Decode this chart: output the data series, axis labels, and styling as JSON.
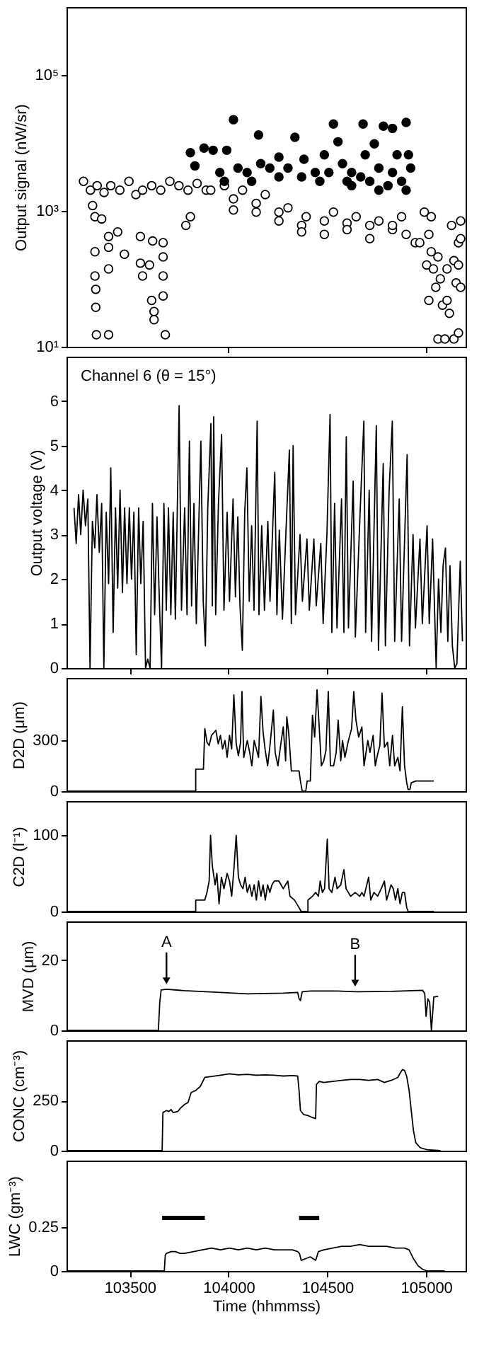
{
  "chart_data": [
    {
      "type": "scatter",
      "ylabel": "Output signal (nW/sr)",
      "log": true,
      "marker": "circle",
      "tick_labels": "y",
      "xlim": [
        103180,
        105200
      ],
      "xticks": [
        {
          "value": 104000,
          "label": null
        },
        {
          "value": 105000,
          "label": null
        }
      ],
      "ylim": [
        10,
        1000000
      ],
      "yticks": [
        {
          "value": 10,
          "label": "10¹"
        },
        {
          "value": 1000,
          "label": "10³"
        },
        {
          "value": 100000,
          "label": "10⁵"
        }
      ],
      "series": [
        {
          "color": "#ffffff",
          "x": [
            103266,
            103301,
            103335,
            103370,
            103404,
            103450,
            103496,
            103531,
            103565,
            103611,
            103657,
            103703,
            103749,
            103795,
            103841,
            103887,
            103324,
            103324,
            103324,
            103328,
            103328,
            103331,
            103393,
            103393,
            103393,
            103393,
            103439,
            103473,
            103554,
            103554,
            103565,
            103600,
            103611,
            103623,
            103623,
            103616,
            103669,
            103669,
            103669,
            103669,
            103680,
            103784,
            103807,
            103312,
            103358,
            103910,
            104025,
            104140,
            104255,
            104370,
            104485,
            104600,
            104715,
            104830,
            104899,
            104025,
            104140,
            104255,
            104370,
            104485,
            104600,
            104715,
            104830,
            104945,
            103979,
            104071,
            104186,
            104301,
            104393,
            104531,
            104646,
            104761,
            104876,
            104968,
            104991,
            105026,
            105014,
            105026,
            105003,
            105037,
            105060,
            105049,
            105072,
            105083,
            105106,
            105118,
            105141,
            105152,
            105164,
            105175,
            105175,
            105164,
            105175,
            105014,
            105060,
            105095,
            105141,
            105164,
            105129,
            105106
          ],
          "values": [
            2720,
            2020,
            2350,
            1870,
            2350,
            2020,
            2720,
            1740,
            2020,
            2350,
            2020,
            2720,
            2350,
            2020,
            2530,
            2020,
            820,
            250,
            110,
            70,
            38,
            15,
            15,
            420,
            290,
            140,
            490,
            230,
            420,
            170,
            110,
            160,
            48,
            33,
            25,
            360,
            340,
            210,
            110,
            56,
            15,
            610,
            820,
            1200,
            760,
            2020,
            1500,
            1290,
            960,
            610,
            710,
            660,
            610,
            530,
            450,
            1030,
            960,
            710,
            490,
            450,
            530,
            390,
            610,
            340,
            2350,
            2020,
            1740,
            1110,
            820,
            960,
            820,
            710,
            820,
            340,
            960,
            820,
            450,
            250,
            160,
            140,
            210,
            75,
            100,
            41,
            48,
            31,
            185,
            87,
            340,
            710,
            390,
            160,
            75,
            48,
            13,
            13,
            13,
            16,
            610,
            140
          ]
        },
        {
          "color": "#000000",
          "x": [
            103807,
            103876,
            103922,
            103991,
            104025,
            103830,
            103956,
            104048,
            104094,
            104152,
            104163,
            104209,
            104255,
            104301,
            104336,
            104382,
            104439,
            104485,
            104531,
            104554,
            104577,
            104623,
            104681,
            104692,
            104738,
            104784,
            104830,
            104853,
            104899,
            104911,
            104876,
            104761,
            104508,
            104600,
            104715,
            104807,
            104899,
            104462,
            104623,
            104761,
            104370,
            104255,
            104117,
            103979,
            104669,
            104830,
            104922
          ],
          "values": [
            7200,
            8400,
            7800,
            7800,
            22000,
            4600,
            3670,
            4260,
            3670,
            13100,
            4950,
            4260,
            6200,
            4260,
            12100,
            5750,
            3670,
            6700,
            19000,
            10400,
            4950,
            3670,
            19000,
            6700,
            9700,
            17700,
            16400,
            6700,
            20000,
            6700,
            2720,
            4260,
            3670,
            2720,
            2720,
            2350,
            2020,
            2720,
            2350,
            2020,
            3160,
            3160,
            2720,
            2720,
            3160,
            3670,
            4260
          ]
        }
      ]
    },
    {
      "type": "line",
      "ylabel": "Output voltage (V)",
      "tick_labels": "y",
      "annotations": [
        "Channel 6 (θ = 15°)"
      ],
      "xlim": [
        103180,
        105200
      ],
      "xticks": [
        {
          "value": 103500,
          "label": null
        },
        {
          "value": 104000,
          "label": null
        },
        {
          "value": 104500,
          "label": null
        },
        {
          "value": 105000,
          "label": null
        }
      ],
      "ylim": [
        0,
        7
      ],
      "yticks": [
        0,
        1,
        2,
        3,
        4,
        5,
        6
      ],
      "series": [
        {
          "color": "#000000",
          "x": [
            103218,
            103229,
            103241,
            103252,
            103264,
            103276,
            103288,
            103299,
            103311,
            103323,
            103334,
            103346,
            103358,
            103369,
            103381,
            103393,
            103404,
            103416,
            103428,
            103439,
            103451,
            103463,
            103474,
            103486,
            103498,
            103509,
            103521,
            103533,
            103545,
            103556,
            103568,
            103580,
            103591,
            103603,
            103615,
            103626,
            103638,
            103650,
            103661,
            103673,
            103685,
            103696,
            103708,
            103720,
            103731,
            103750,
            103762,
            103778,
            103790,
            103802,
            103813,
            103825,
            103837,
            103860,
            103872,
            103883,
            103895,
            103911,
            103918,
            103925,
            103935,
            103949,
            103965,
            103977,
            103993,
            104005,
            104023,
            104035,
            104047,
            104058,
            104070,
            104082,
            104093,
            104105,
            104117,
            104129,
            104145,
            104154,
            104168,
            104182,
            104199,
            104210,
            104234,
            104245,
            104257,
            104273,
            104292,
            104308,
            104318,
            104327,
            104339,
            104362,
            104374,
            104397,
            104409,
            104432,
            104444,
            104467,
            104479,
            104498,
            104514,
            104523,
            104537,
            104549,
            104572,
            104584,
            104596,
            104607,
            104631,
            104642,
            104666,
            104685,
            104694,
            104712,
            104724,
            104748,
            104759,
            104783,
            104794,
            104813,
            104829,
            104841,
            104864,
            104876,
            104904,
            104916,
            104934,
            104946,
            104969,
            104981,
            105005,
            105016,
            105033,
            105051,
            105063,
            105075,
            105086,
            105098,
            105110,
            105121,
            105133,
            105145,
            105156,
            105173,
            105184
          ],
          "values": [
            3.6,
            2.8,
            3.9,
            3.0,
            4.0,
            3.2,
            3.8,
            0,
            3.3,
            2.7,
            3.9,
            2.6,
            3.7,
            0,
            3.5,
            1.9,
            4.5,
            0.8,
            3.6,
            1.8,
            4.0,
            1.7,
            3.6,
            1.9,
            3.6,
            2.0,
            3.5,
            0.3,
            3.6,
            1.9,
            3.3,
            0,
            0.2,
            0,
            3.7,
            1.2,
            3.4,
            1.5,
            0,
            3.7,
            1.3,
            3.6,
            1.2,
            3.5,
            1.1,
            5.9,
            1.3,
            3.6,
            1.2,
            5.1,
            1.4,
            3.7,
            1.0,
            5.1,
            1.5,
            0.5,
            3.6,
            5.5,
            1.4,
            5.65,
            1.2,
            3.7,
            5.25,
            1.3,
            3.5,
            1.5,
            3.8,
            1.6,
            3.4,
            1.4,
            0.4,
            3.5,
            4.5,
            1.5,
            3.2,
            1.3,
            5.55,
            1.2,
            3.2,
            1.3,
            3.3,
            1.5,
            4.4,
            1.2,
            3.1,
            1.1,
            3.2,
            4.9,
            1.0,
            5.0,
            1.2,
            3.0,
            1.5,
            2.9,
            1.3,
            2.9,
            1.4,
            2.8,
            1.0,
            3.0,
            5.7,
            0.8,
            3.7,
            0.9,
            3.8,
            0.8,
            5.2,
            0.9,
            4.2,
            0.7,
            3.5,
            5.55,
            0.8,
            4.0,
            0.6,
            5.45,
            0.4,
            4.6,
            0.5,
            4.0,
            5.55,
            0.6,
            3.8,
            0.6,
            4.8,
            0.5,
            3.0,
            0.9,
            2.9,
            1.0,
            3.2,
            1.0,
            2.9,
            0,
            2.0,
            0.8,
            2.3,
            2.7,
            0.6,
            2.3,
            0.5,
            0,
            0.1,
            2.4,
            0.6
          ]
        }
      ]
    },
    {
      "type": "line",
      "ylabel": "D2D (μm)",
      "tick_labels": "y",
      "xlim": [
        103180,
        105200
      ],
      "ylim": [
        0,
        670
      ],
      "yticks": [
        0,
        300
      ],
      "series": [
        {
          "color": "#000000",
          "x": [
            103186,
            103834,
            103834,
            103873,
            103880,
            103891,
            103902,
            103914,
            103936,
            103948,
            103959,
            103970,
            103982,
            103993,
            104005,
            104016,
            104027,
            104039,
            104050,
            104061,
            104068,
            104077,
            104095,
            104107,
            104118,
            104130,
            104152,
            104164,
            104175,
            104186,
            104198,
            104209,
            104227,
            104236,
            104250,
            104266,
            104277,
            104289,
            104295,
            104305,
            104318,
            104357,
            104364,
            104373,
            104391,
            104398,
            104414,
            104425,
            104436,
            104448,
            104459,
            104470,
            104482,
            104493,
            104505,
            104516,
            104532,
            104545,
            104555,
            104568,
            104577,
            104589,
            104607,
            104623,
            104634,
            104645,
            104659,
            104675,
            104686,
            104705,
            104716,
            104732,
            104743,
            104755,
            104766,
            104777,
            104789,
            104805,
            104816,
            104830,
            104841,
            104857,
            104868,
            104880,
            104891,
            104902,
            104909,
            104918,
            104925,
            104948,
            105039
          ],
          "values": [
            0,
            0,
            130,
            130,
            370,
            290,
            270,
            330,
            360,
            280,
            330,
            250,
            300,
            200,
            330,
            250,
            570,
            280,
            210,
            290,
            590,
            200,
            300,
            230,
            150,
            300,
            200,
            560,
            350,
            240,
            150,
            260,
            480,
            230,
            150,
            290,
            380,
            180,
            440,
            340,
            120,
            120,
            60,
            0,
            0,
            60,
            60,
            450,
            320,
            600,
            380,
            150,
            180,
            240,
            590,
            150,
            150,
            230,
            420,
            180,
            300,
            200,
            300,
            370,
            590,
            420,
            320,
            380,
            150,
            300,
            230,
            330,
            150,
            220,
            270,
            580,
            260,
            290,
            150,
            330,
            150,
            200,
            120,
            500,
            150,
            50,
            10,
            10,
            50,
            60,
            60
          ]
        }
      ]
    },
    {
      "type": "line",
      "ylabel": "C2D (l⁻¹)",
      "tick_labels": "y",
      "xlim": [
        103180,
        105200
      ],
      "ylim": [
        0,
        145
      ],
      "yticks": [
        0,
        100
      ],
      "series": [
        {
          "color": "#000000",
          "x": [
            103186,
            103834,
            103834,
            103880,
            103891,
            103902,
            103909,
            103918,
            103932,
            103941,
            103952,
            103964,
            103977,
            103993,
            104005,
            104016,
            104027,
            104039,
            104050,
            104061,
            104073,
            104084,
            104095,
            104107,
            104118,
            104130,
            104141,
            104152,
            104164,
            104175,
            104186,
            104198,
            104209,
            104220,
            104232,
            104255,
            104277,
            104300,
            104311,
            104334,
            104357,
            104368,
            104402,
            104402,
            104425,
            104441,
            104455,
            104464,
            104475,
            104486,
            104500,
            104509,
            104523,
            104539,
            104550,
            104568,
            104584,
            104595,
            104618,
            104641,
            104664,
            104675,
            104686,
            104709,
            104720,
            104736,
            104755,
            104773,
            104789,
            104800,
            104823,
            104834,
            104845,
            104857,
            104868,
            104880,
            104891,
            104902,
            104909,
            105039
          ],
          "values": [
            0,
            0,
            15,
            15,
            25,
            40,
            100,
            60,
            35,
            50,
            10,
            45,
            30,
            50,
            40,
            20,
            55,
            100,
            45,
            35,
            30,
            45,
            25,
            35,
            20,
            35,
            15,
            40,
            20,
            35,
            15,
            35,
            25,
            35,
            40,
            40,
            30,
            40,
            20,
            15,
            5,
            0,
            0,
            15,
            20,
            25,
            20,
            40,
            25,
            30,
            95,
            30,
            25,
            45,
            30,
            35,
            55,
            30,
            20,
            25,
            20,
            25,
            20,
            45,
            15,
            25,
            20,
            30,
            40,
            15,
            35,
            30,
            15,
            30,
            10,
            25,
            25,
            5,
            0,
            0
          ]
        }
      ]
    },
    {
      "type": "line",
      "ylabel": "MVD (μm)",
      "tick_labels": "y",
      "xlim": [
        103180,
        105200
      ],
      "ylim": [
        0,
        31
      ],
      "yticks": [
        0,
        20
      ],
      "annotations": [
        {
          "text": "A",
          "x": 103686,
          "y": 11.7
        },
        {
          "text": "B",
          "x": 104641,
          "y": 11.0
        }
      ],
      "series": [
        {
          "color": "#000000",
          "x": [
            103186,
            103645,
            103652,
            103659,
            103686,
            103777,
            103959,
            104095,
            104277,
            104350,
            104357,
            104364,
            104373,
            104414,
            104550,
            104641,
            104823,
            104982,
            104993,
            105000,
            105009,
            105018,
            105027,
            105039,
            105061
          ],
          "values": [
            0,
            0,
            8,
            11.5,
            11.7,
            11.3,
            10.8,
            10.4,
            10.6,
            10.8,
            9,
            8.5,
            11.0,
            11.2,
            11.2,
            11.0,
            11.1,
            11.4,
            10.5,
            4,
            9,
            8,
            0,
            9.5,
            9.7
          ]
        }
      ]
    },
    {
      "type": "line",
      "ylabel": "CONC (cm⁻³)",
      "tick_labels": "y",
      "xlim": [
        103180,
        105200
      ],
      "ylim": [
        0,
        550
      ],
      "yticks": [
        0,
        250
      ],
      "series": [
        {
          "color": "#000000",
          "x": [
            103186,
            103664,
            103668,
            103686,
            103698,
            103709,
            103720,
            103743,
            103755,
            103777,
            103795,
            103811,
            103834,
            103857,
            103880,
            103914,
            103959,
            104005,
            104050,
            104095,
            104141,
            104186,
            104232,
            104277,
            104323,
            104350,
            104357,
            104364,
            104380,
            104402,
            104425,
            104441,
            104445,
            104459,
            104482,
            104527,
            104573,
            104618,
            104664,
            104709,
            104755,
            104789,
            104823,
            104857,
            104868,
            104880,
            104891,
            104902,
            104914,
            104925,
            104936,
            104948,
            104970,
            105005,
            105073
          ],
          "values": [
            0,
            0,
            190,
            200,
            195,
            205,
            190,
            195,
            210,
            230,
            240,
            290,
            300,
            320,
            365,
            370,
            376,
            383,
            378,
            380,
            376,
            378,
            376,
            372,
            374,
            372,
            300,
            200,
            180,
            175,
            165,
            160,
            330,
            345,
            340,
            345,
            350,
            355,
            355,
            350,
            355,
            340,
            350,
            365,
            385,
            404,
            400,
            370,
            300,
            200,
            100,
            40,
            15,
            5,
            0
          ]
        }
      ]
    },
    {
      "type": "line",
      "ylabel": "LWC (gm⁻³)",
      "xlabel": "Time (hhmmss)",
      "xlim": [
        103180,
        105200
      ],
      "xticks": [
        103500,
        104000,
        104500,
        105000
      ],
      "ylim": [
        0,
        0.625
      ],
      "yticks": [
        0,
        0.25
      ],
      "series": [
        {
          "color": "#000000",
          "x": [
            103186,
            103675,
            103680,
            103686,
            103709,
            103732,
            103755,
            103777,
            103823,
            103868,
            103914,
            103959,
            104005,
            104050,
            104095,
            104141,
            104186,
            104232,
            104277,
            104323,
            104350,
            104359,
            104368,
            104391,
            104414,
            104441,
            104455,
            104482,
            104527,
            104573,
            104618,
            104664,
            104709,
            104755,
            104800,
            104845,
            104891,
            104914,
            104936,
            104959,
            104982,
            105005,
            105095
          ],
          "values": [
            0,
            0,
            0.09,
            0.1,
            0.11,
            0.11,
            0.1,
            0.1,
            0.11,
            0.12,
            0.13,
            0.12,
            0.13,
            0.12,
            0.13,
            0.12,
            0.13,
            0.12,
            0.12,
            0.12,
            0.11,
            0.1,
            0.06,
            0.07,
            0.08,
            0.06,
            0.11,
            0.12,
            0.13,
            0.14,
            0.14,
            0.15,
            0.14,
            0.14,
            0.14,
            0.13,
            0.13,
            0.12,
            0.07,
            0.03,
            0.01,
            0,
            0
          ]
        },
        {
          "color": "#000000",
          "x": [
            103664,
            103880
          ],
          "values": [
            0.3,
            0.3
          ]
        },
        {
          "color": "#000000",
          "x": [
            104357,
            104459
          ],
          "values": [
            0.3,
            0.3
          ]
        }
      ]
    }
  ]
}
